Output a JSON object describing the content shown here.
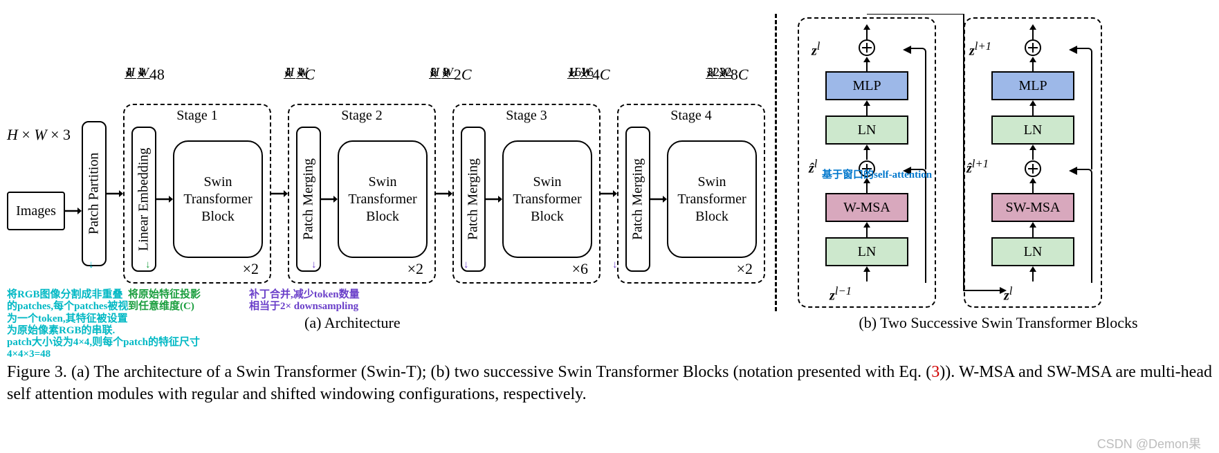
{
  "figure": {
    "caption_prefix": "Figure 3.",
    "caption_text_1": "(a) The architecture of a Swin Transformer (Swin-T); (b) two successive Swin Transformer Blocks (notation presented with Eq. (",
    "caption_eq": "3",
    "caption_text_2": ")). W-MSA and SW-MSA are multi-head self attention modules with regular and shifted windowing configurations, respectively.",
    "watermark": "CSDN @Demon果"
  },
  "colors": {
    "mlp": "#9db8e8",
    "ln": "#cde8cd",
    "msa": "#d8a8bd",
    "anno_cyan": "#00b8c4",
    "anno_green": "#1a9e3e",
    "anno_purple": "#6a3fc9",
    "anno_blue": "#0077cc",
    "eq_red": "#d00000",
    "border": "#000000"
  },
  "arch": {
    "input_label": "Images",
    "input_dim": "H × W × 3",
    "patch_partition": "Patch Partition",
    "linear_embedding": "Linear Embedding",
    "patch_merging": "Patch Merging",
    "swin_block": "Swin\nTransformer\nBlock",
    "stages": [
      {
        "name": "Stage 1",
        "dim": "H/4 × W/4 × 48",
        "mult": "×2"
      },
      {
        "name": "Stage 2",
        "dim": "H/4 × W/4 × C",
        "mult": "×2"
      },
      {
        "name": "Stage 3",
        "dim": "H/8 × W/8 × 2C",
        "mult": "×6"
      },
      {
        "name": "Stage 4",
        "dim": "H/16 × W/16 × 4C",
        "mult": "×2"
      }
    ],
    "dim_after_s4": "H/32 × W/32 × 8C",
    "subcaption": "(a) Architecture"
  },
  "blocks": {
    "subcaption": "(b) Two Successive Swin Transformer Blocks",
    "left": {
      "top_out": "z^l",
      "mid_out": "ẑ^l",
      "in": "z^(l−1)",
      "mlp": "MLP",
      "ln": "LN",
      "msa": "W-MSA"
    },
    "right": {
      "top_out": "z^(l+1)",
      "mid_out": "ẑ^(l+1)",
      "in": "z^l",
      "mlp": "MLP",
      "ln": "LN",
      "msa": "SW-MSA"
    }
  },
  "annotations": {
    "patch_partition_note": "将RGB图像分割成非重叠\n的patches,每个patches被视\n为一个token,其特征被设置\n为原始像素RGB的串联.\npatch大小设为4×4,则每个patch的特征尺寸4×4×3=48",
    "linear_embedding_note": "将原始特征投影\n到任意维度(C)",
    "patch_merging_note": "补丁合并,减少token数量\n相当于2× downsampling",
    "wmsa_note": "基于窗口的self-attention"
  }
}
